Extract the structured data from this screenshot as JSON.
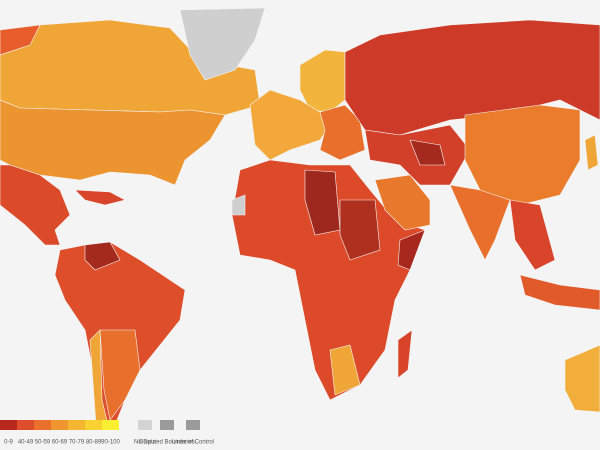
{
  "legend": {
    "scale": [
      "0-9",
      "40-49",
      "50-59",
      "60-69",
      "70-79",
      "80-89",
      "90-100"
    ],
    "no_data": "No Data",
    "disputed": "Disputed Boundaries",
    "lines": "Lines of Control"
  }
}
